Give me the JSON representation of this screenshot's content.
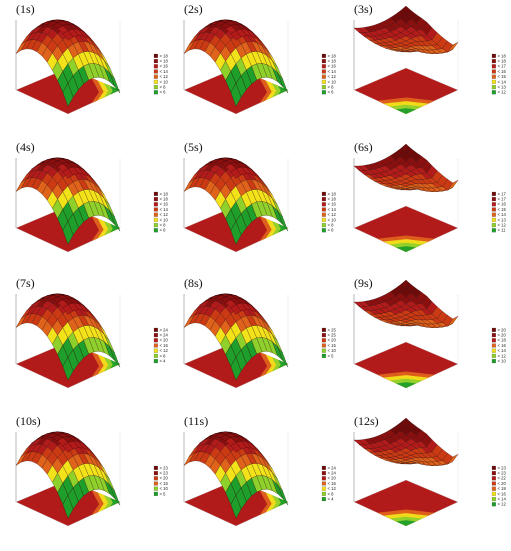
{
  "figure": {
    "panels": [
      {
        "label": "(1s)",
        "legend": [
          "> 18",
          "< 18",
          "< 16",
          "< 14",
          "< 12",
          "< 10",
          "< 8",
          "< 6"
        ]
      },
      {
        "label": "(2s)",
        "legend": [
          "> 18",
          "< 18",
          "< 16",
          "< 14",
          "< 12",
          "< 10",
          "< 8",
          "< 6"
        ]
      },
      {
        "label": "(3s)",
        "legend": [
          "> 18",
          "< 18",
          "< 17",
          "< 16",
          "< 15",
          "< 14",
          "< 13",
          "< 12"
        ]
      },
      {
        "label": "(4s)",
        "legend": [
          "> 18",
          "< 18",
          "< 16",
          "< 14",
          "< 12",
          "< 10",
          "< 8",
          "< 6"
        ]
      },
      {
        "label": "(5s)",
        "legend": [
          "> 18",
          "< 18",
          "< 16",
          "< 14",
          "< 12",
          "< 10",
          "< 8",
          "< 6"
        ]
      },
      {
        "label": "(6s)",
        "legend": [
          "> 17",
          "< 17",
          "< 16",
          "< 15",
          "< 14",
          "< 13",
          "< 12",
          "< 11"
        ]
      },
      {
        "label": "(7s)",
        "legend": [
          "> 24",
          "< 24",
          "< 20",
          "< 16",
          "< 12",
          "< 8",
          "< 4"
        ]
      },
      {
        "label": "(8s)",
        "legend": [
          "> 25",
          "< 25",
          "< 20",
          "< 15",
          "< 10",
          "< 5"
        ]
      },
      {
        "label": "(9s)",
        "legend": [
          "> 20",
          "< 20",
          "< 18",
          "< 16",
          "< 14",
          "< 12",
          "< 10"
        ]
      },
      {
        "label": "(10s)",
        "legend": [
          "> 23",
          "< 23",
          "< 20",
          "< 15",
          "< 10",
          "< 5"
        ]
      },
      {
        "label": "(11s)",
        "legend": [
          "> 24",
          "< 24",
          "< 20",
          "< 16",
          "< 12",
          "< 8",
          "< 4"
        ]
      },
      {
        "label": "(12s)",
        "legend": [
          "> 23",
          "< 23",
          "< 22",
          "< 20",
          "< 18",
          "< 16",
          "< 14",
          "< 12"
        ]
      }
    ],
    "colors": {
      "dark_red": "#6e0a0a",
      "red": "#b31b1b",
      "orange": "#e0631c",
      "yellow": "#f2e21a",
      "light_green": "#8fd12b",
      "green": "#1e9e2a",
      "mesh": "#2a0505",
      "pink_grid": "#ff66cc"
    }
  },
  "chart_data": [
    {
      "type": "heatmap",
      "surface": "3d-response",
      "panel": "(1s)",
      "levels": [
        "> 18",
        "< 18",
        "< 16",
        "< 14",
        "< 12",
        "< 10",
        "< 8",
        "< 6"
      ]
    },
    {
      "type": "heatmap",
      "surface": "3d-response",
      "panel": "(2s)",
      "levels": [
        "> 18",
        "< 18",
        "< 16",
        "< 14",
        "< 12",
        "< 10",
        "< 8",
        "< 6"
      ]
    },
    {
      "type": "heatmap",
      "surface": "3d-response",
      "panel": "(3s)",
      "levels": [
        "> 18",
        "< 18",
        "< 17",
        "< 16",
        "< 15",
        "< 14",
        "< 13",
        "< 12"
      ]
    },
    {
      "type": "heatmap",
      "surface": "3d-response",
      "panel": "(4s)",
      "levels": [
        "> 18",
        "< 18",
        "< 16",
        "< 14",
        "< 12",
        "< 10",
        "< 8",
        "< 6"
      ]
    },
    {
      "type": "heatmap",
      "surface": "3d-response",
      "panel": "(5s)",
      "levels": [
        "> 18",
        "< 18",
        "< 16",
        "< 14",
        "< 12",
        "< 10",
        "< 8",
        "< 6"
      ]
    },
    {
      "type": "heatmap",
      "surface": "3d-response",
      "panel": "(6s)",
      "levels": [
        "> 17",
        "< 17",
        "< 16",
        "< 15",
        "< 14",
        "< 13",
        "< 12",
        "< 11"
      ]
    },
    {
      "type": "heatmap",
      "surface": "3d-response",
      "panel": "(7s)",
      "levels": [
        "> 24",
        "< 24",
        "< 20",
        "< 16",
        "< 12",
        "< 8",
        "< 4"
      ]
    },
    {
      "type": "heatmap",
      "surface": "3d-response",
      "panel": "(8s)",
      "levels": [
        "> 25",
        "< 25",
        "< 20",
        "< 15",
        "< 10",
        "< 5"
      ]
    },
    {
      "type": "heatmap",
      "surface": "3d-response",
      "panel": "(9s)",
      "levels": [
        "> 20",
        "< 20",
        "< 18",
        "< 16",
        "< 14",
        "< 12",
        "< 10"
      ]
    },
    {
      "type": "heatmap",
      "surface": "3d-response",
      "panel": "(10s)",
      "levels": [
        "> 23",
        "< 23",
        "< 20",
        "< 15",
        "< 10",
        "< 5"
      ]
    },
    {
      "type": "heatmap",
      "surface": "3d-response",
      "panel": "(11s)",
      "levels": [
        "> 24",
        "< 24",
        "< 20",
        "< 16",
        "< 12",
        "< 8",
        "< 4"
      ]
    },
    {
      "type": "heatmap",
      "surface": "3d-response",
      "panel": "(12s)",
      "levels": [
        "> 23",
        "< 23",
        "< 22",
        "< 20",
        "< 18",
        "< 16",
        "< 14",
        "< 12"
      ]
    }
  ]
}
